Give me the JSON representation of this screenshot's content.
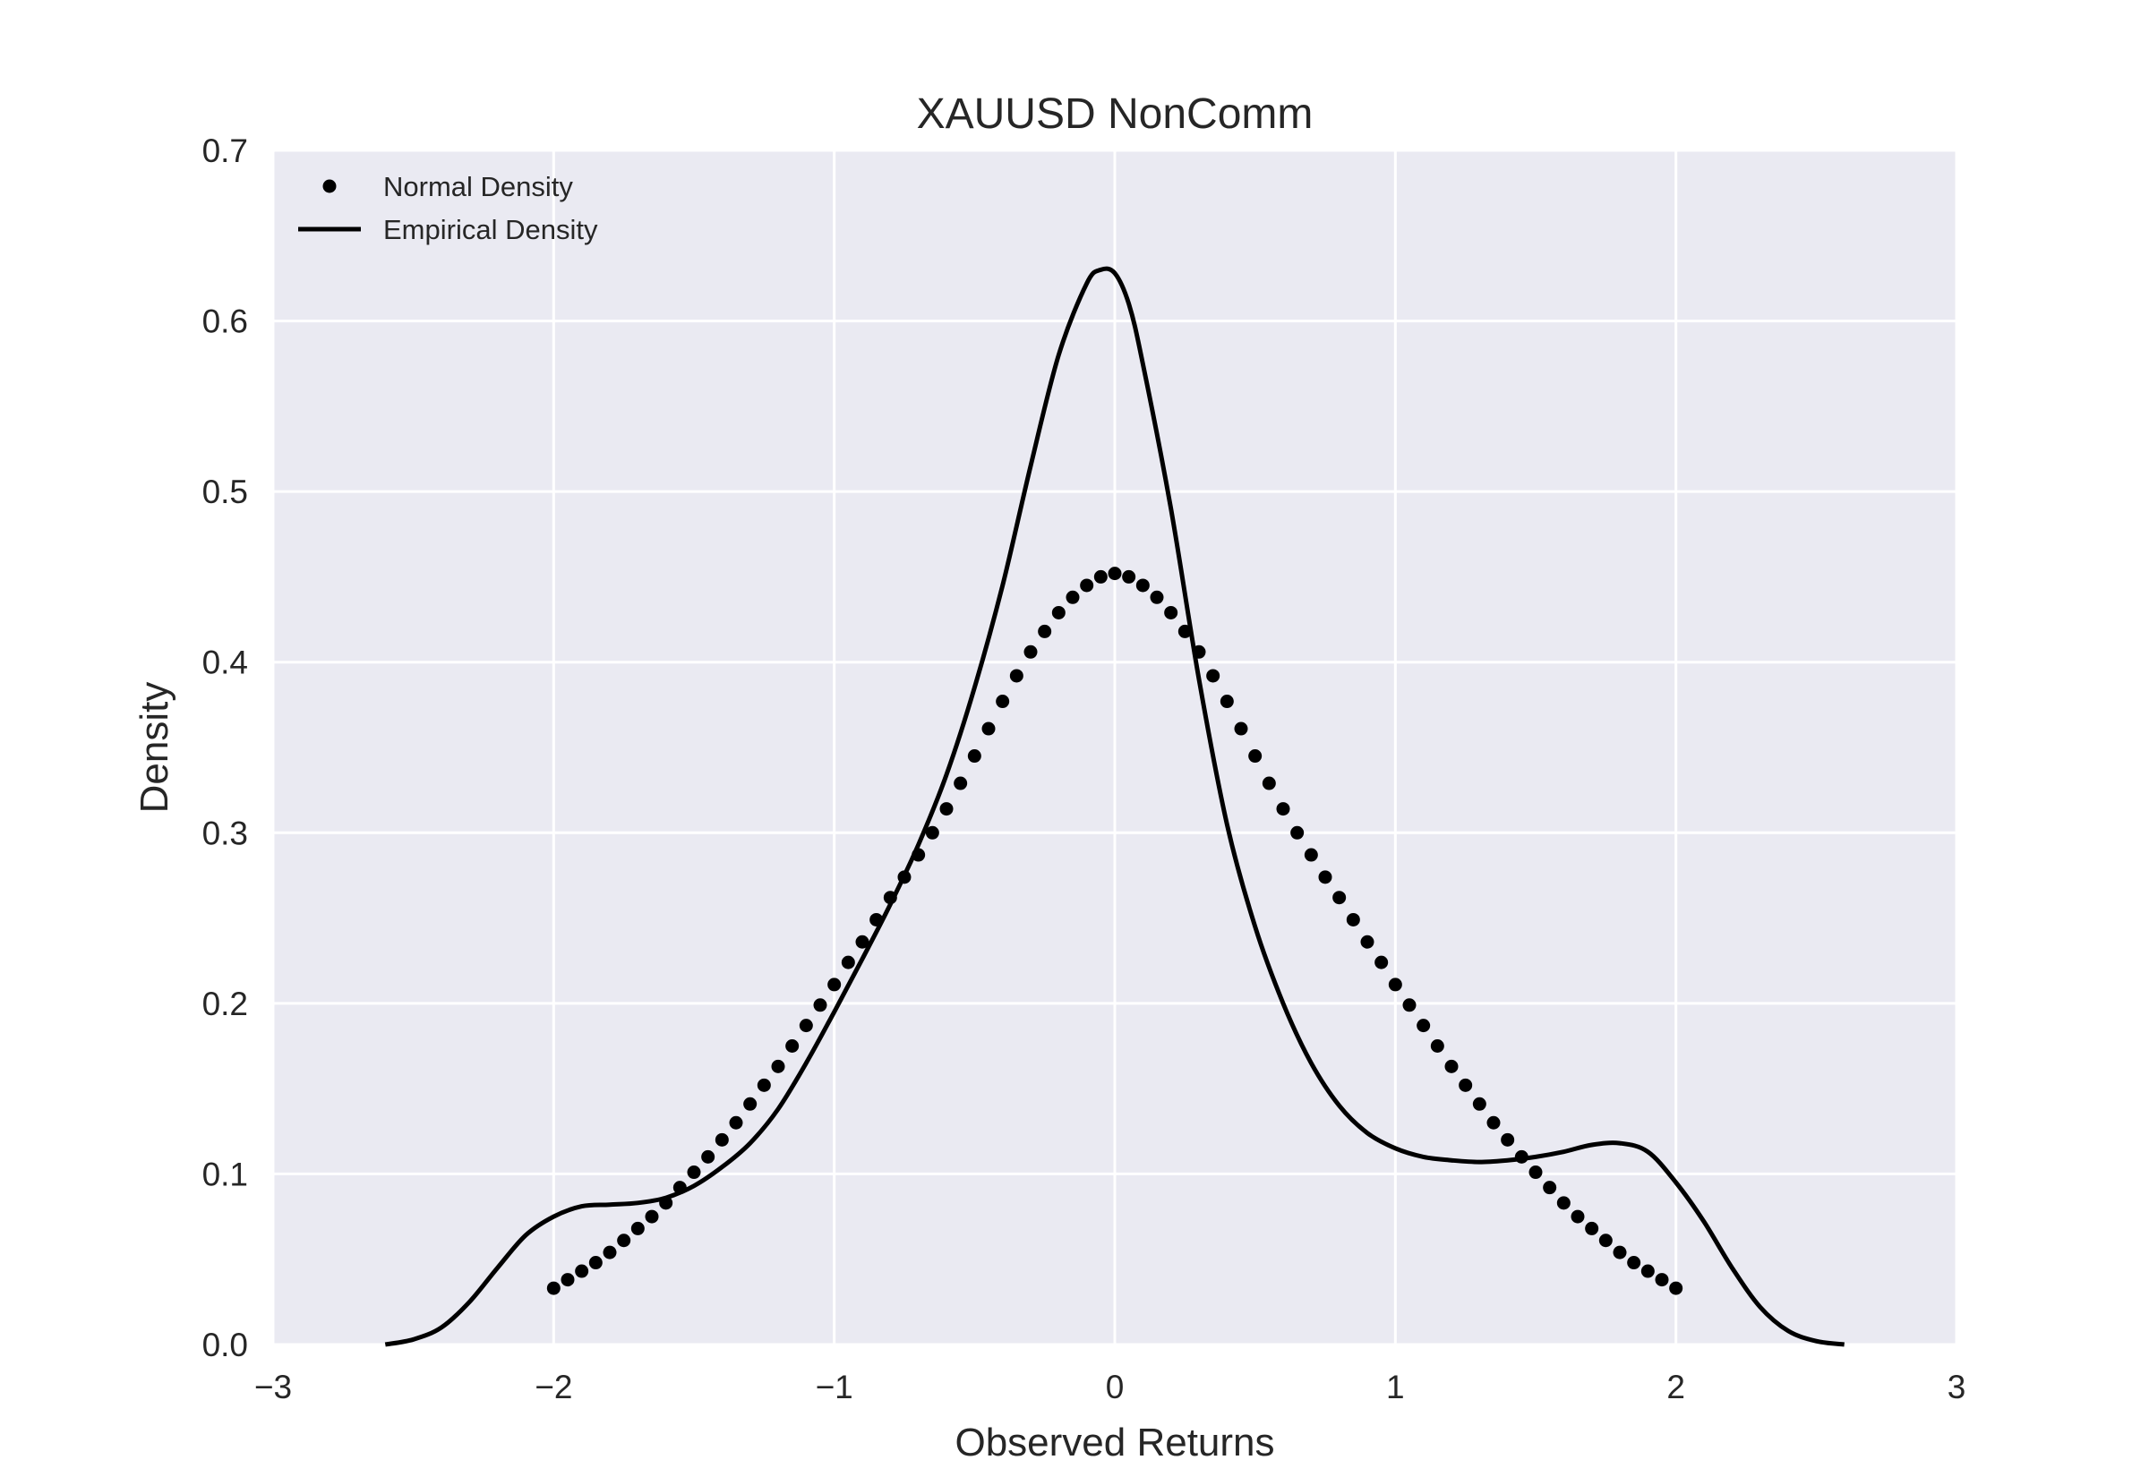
{
  "chart_data": {
    "type": "line",
    "title": "XAUUSD NonComm",
    "xlabel": "Observed Returns",
    "ylabel": "Density",
    "xlim": [
      -3,
      3
    ],
    "ylim": [
      0,
      0.7
    ],
    "xticks": [
      -3,
      -2,
      -1,
      0,
      1,
      2,
      3
    ],
    "xtick_labels": [
      "−3",
      "−2",
      "−1",
      "0",
      "1",
      "2",
      "3"
    ],
    "yticks": [
      0,
      0.1,
      0.2,
      0.3,
      0.4,
      0.5,
      0.6,
      0.7
    ],
    "ytick_labels": [
      "0.0",
      "0.1",
      "0.2",
      "0.3",
      "0.4",
      "0.5",
      "0.6",
      "0.7"
    ],
    "grid": true,
    "background": "#eaeaf2",
    "legend_placement": "top-left",
    "series": [
      {
        "name": "Normal Density",
        "style": "dots",
        "color": "#000000",
        "x": [
          -2.0,
          -1.95,
          -1.9,
          -1.85,
          -1.8,
          -1.75,
          -1.7,
          -1.65,
          -1.6,
          -1.55,
          -1.5,
          -1.45,
          -1.4,
          -1.35,
          -1.3,
          -1.25,
          -1.2,
          -1.15,
          -1.1,
          -1.05,
          -1.0,
          -0.95,
          -0.9,
          -0.85,
          -0.8,
          -0.75,
          -0.7,
          -0.65,
          -0.6,
          -0.55,
          -0.5,
          -0.45,
          -0.4,
          -0.35,
          -0.3,
          -0.25,
          -0.2,
          -0.15,
          -0.1,
          -0.05,
          0.0,
          0.05,
          0.1,
          0.15,
          0.2,
          0.25,
          0.3,
          0.35,
          0.4,
          0.45,
          0.5,
          0.55,
          0.6,
          0.65,
          0.7,
          0.75,
          0.8,
          0.85,
          0.9,
          0.95,
          1.0,
          1.05,
          1.1,
          1.15,
          1.2,
          1.25,
          1.3,
          1.35,
          1.4,
          1.45,
          1.5,
          1.55,
          1.6,
          1.65,
          1.7,
          1.75,
          1.8,
          1.85,
          1.9,
          1.95,
          2.0
        ],
        "y": [
          0.033,
          0.038,
          0.043,
          0.048,
          0.054,
          0.061,
          0.068,
          0.075,
          0.083,
          0.092,
          0.101,
          0.11,
          0.12,
          0.13,
          0.141,
          0.152,
          0.163,
          0.175,
          0.187,
          0.199,
          0.211,
          0.224,
          0.236,
          0.249,
          0.262,
          0.274,
          0.287,
          0.3,
          0.314,
          0.329,
          0.345,
          0.361,
          0.377,
          0.392,
          0.406,
          0.418,
          0.429,
          0.438,
          0.445,
          0.45,
          0.452,
          0.45,
          0.445,
          0.438,
          0.429,
          0.418,
          0.406,
          0.392,
          0.377,
          0.361,
          0.345,
          0.329,
          0.314,
          0.3,
          0.287,
          0.274,
          0.262,
          0.249,
          0.236,
          0.224,
          0.211,
          0.199,
          0.187,
          0.175,
          0.163,
          0.152,
          0.141,
          0.13,
          0.12,
          0.11,
          0.101,
          0.092,
          0.083,
          0.075,
          0.068,
          0.061,
          0.054,
          0.048,
          0.043,
          0.038,
          0.033
        ]
      },
      {
        "name": "Empirical Density",
        "style": "line",
        "color": "#000000",
        "x": [
          -2.6,
          -2.5,
          -2.4,
          -2.3,
          -2.2,
          -2.1,
          -2.0,
          -1.9,
          -1.8,
          -1.7,
          -1.6,
          -1.5,
          -1.4,
          -1.3,
          -1.2,
          -1.1,
          -1.0,
          -0.9,
          -0.8,
          -0.7,
          -0.6,
          -0.5,
          -0.4,
          -0.3,
          -0.2,
          -0.1,
          -0.05,
          0.0,
          0.05,
          0.1,
          0.2,
          0.3,
          0.4,
          0.5,
          0.6,
          0.7,
          0.8,
          0.9,
          1.0,
          1.1,
          1.2,
          1.3,
          1.4,
          1.5,
          1.6,
          1.7,
          1.8,
          1.9,
          2.0,
          2.1,
          2.2,
          2.3,
          2.4,
          2.5,
          2.6
        ],
        "y": [
          0.0,
          0.003,
          0.01,
          0.025,
          0.045,
          0.064,
          0.075,
          0.081,
          0.082,
          0.083,
          0.086,
          0.093,
          0.104,
          0.118,
          0.138,
          0.165,
          0.195,
          0.226,
          0.258,
          0.293,
          0.334,
          0.385,
          0.445,
          0.515,
          0.58,
          0.622,
          0.63,
          0.628,
          0.61,
          0.575,
          0.49,
          0.39,
          0.305,
          0.245,
          0.2,
          0.165,
          0.14,
          0.124,
          0.115,
          0.11,
          0.108,
          0.107,
          0.108,
          0.11,
          0.113,
          0.117,
          0.118,
          0.113,
          0.095,
          0.072,
          0.045,
          0.022,
          0.008,
          0.002,
          0.0
        ]
      }
    ]
  }
}
